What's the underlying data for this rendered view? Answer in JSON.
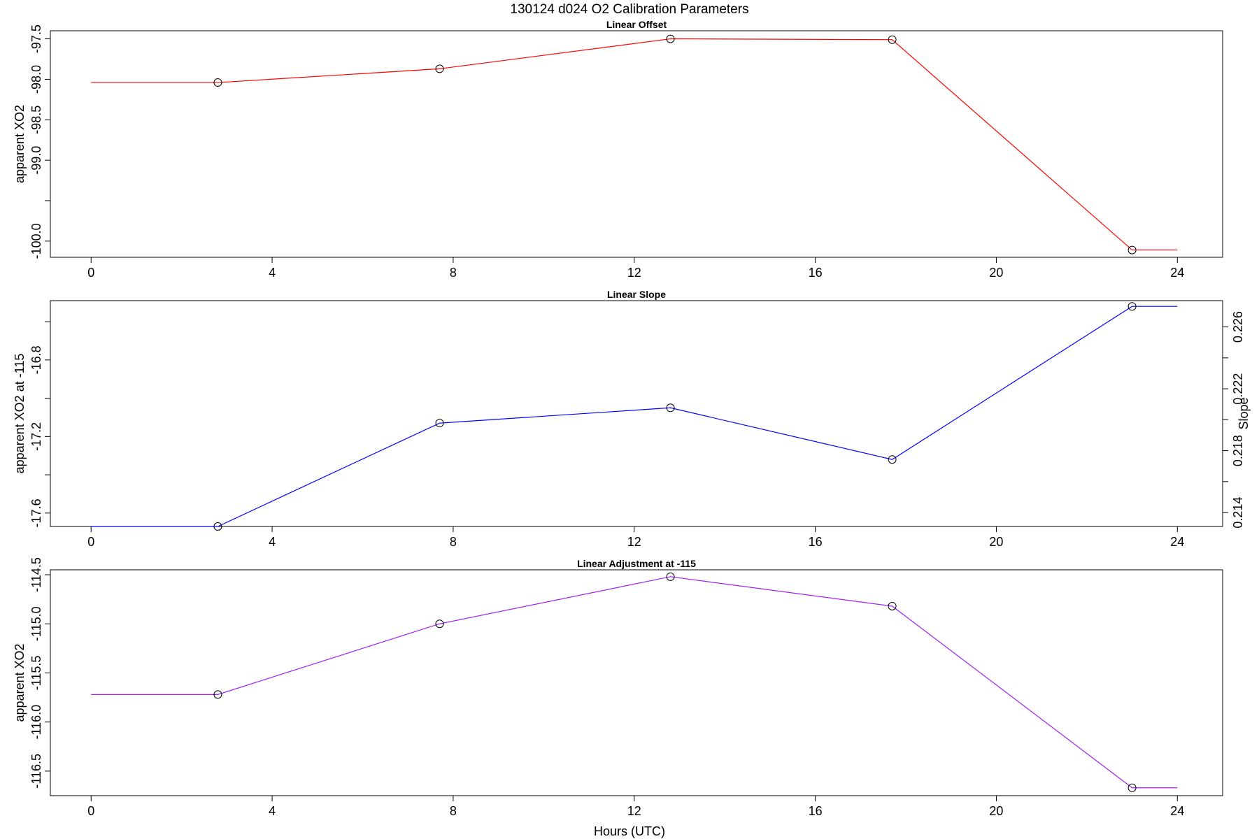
{
  "figure": {
    "title": "130124   d024   O2 Calibration Parameters",
    "xlabel": "Hours (UTC)"
  },
  "chart_data": [
    {
      "type": "line",
      "title": "Linear Offset",
      "xlabel": "",
      "ylabel": "apparent XO2",
      "x": [
        0,
        2.8,
        7.7,
        12.8,
        17.7,
        23.0,
        24
      ],
      "xlim": [
        -0.9,
        25
      ],
      "xticks": [
        0,
        4,
        8,
        12,
        16,
        20,
        24
      ],
      "ylim": [
        -100.2,
        -97.4
      ],
      "yticks": [
        -100.0,
        -99.5,
        -99.0,
        -98.5,
        -98.0,
        -97.5
      ],
      "ytick_labels": [
        "-100.0",
        "",
        "-99.0",
        "-98.5",
        "-98.0",
        "-97.5"
      ],
      "series": [
        {
          "color": "#ff0000",
          "values": [
            -98.04,
            -98.04,
            -97.87,
            -97.5,
            -97.51,
            -100.11,
            -100.11
          ],
          "points": [
            [
              2.8,
              -98.04
            ],
            [
              7.7,
              -97.87
            ],
            [
              12.8,
              -97.5
            ],
            [
              17.7,
              -97.51
            ],
            [
              23.0,
              -100.11
            ]
          ]
        }
      ],
      "grid": false
    },
    {
      "type": "line",
      "title": "Linear Slope",
      "xlabel": "",
      "ylabel": "apparent XO2 at -115",
      "y2label": "Slope",
      "x": [
        0,
        2.8,
        7.7,
        12.8,
        17.7,
        23.0,
        24
      ],
      "xlim": [
        -0.9,
        25
      ],
      "xticks": [
        0,
        4,
        8,
        12,
        16,
        20,
        24
      ],
      "ylim": [
        -17.67,
        -16.49
      ],
      "yticks": [
        -17.6,
        -17.4,
        -17.2,
        -17.0,
        -16.8,
        -16.6
      ],
      "ytick_labels": [
        "-17.6",
        "",
        "-17.2",
        "",
        "-16.8",
        ""
      ],
      "y2lim": [
        0.2131,
        0.2277
      ],
      "y2ticks": [
        0.214,
        0.216,
        0.218,
        0.22,
        0.222,
        0.224,
        0.226
      ],
      "y2tick_labels": [
        "0.214",
        "",
        "0.218",
        "",
        "0.222",
        "",
        "0.226"
      ],
      "series": [
        {
          "color": "#0000ff",
          "values": [
            -17.67,
            -17.67,
            -17.13,
            -17.05,
            -17.32,
            -16.52,
            -16.52
          ],
          "points": [
            [
              2.8,
              -17.67
            ],
            [
              7.7,
              -17.13
            ],
            [
              12.8,
              -17.05
            ],
            [
              17.7,
              -17.32
            ],
            [
              23.0,
              -16.52
            ]
          ]
        }
      ],
      "grid": false
    },
    {
      "type": "line",
      "title": "Linear Adjustment at -115",
      "xlabel": "Hours (UTC)",
      "ylabel": "apparent XO2",
      "x": [
        0,
        2.8,
        7.7,
        12.8,
        17.7,
        23.0,
        24
      ],
      "xlim": [
        -0.9,
        25
      ],
      "xticks": [
        0,
        4,
        8,
        12,
        16,
        20,
        24
      ],
      "ylim": [
        -116.75,
        -114.45
      ],
      "yticks": [
        -116.5,
        -116.0,
        -115.5,
        -115.0,
        -114.5
      ],
      "ytick_labels": [
        "-116.5",
        "-116.0",
        "-115.5",
        "-115.0",
        "-114.5"
      ],
      "series": [
        {
          "color": "#a020f0",
          "values": [
            -115.72,
            -115.72,
            -115.0,
            -114.52,
            -114.82,
            -116.67,
            -116.67
          ],
          "points": [
            [
              2.8,
              -115.72
            ],
            [
              7.7,
              -115.0
            ],
            [
              12.8,
              -114.52
            ],
            [
              17.7,
              -114.82
            ],
            [
              23.0,
              -116.67
            ]
          ]
        }
      ],
      "grid": false
    }
  ]
}
